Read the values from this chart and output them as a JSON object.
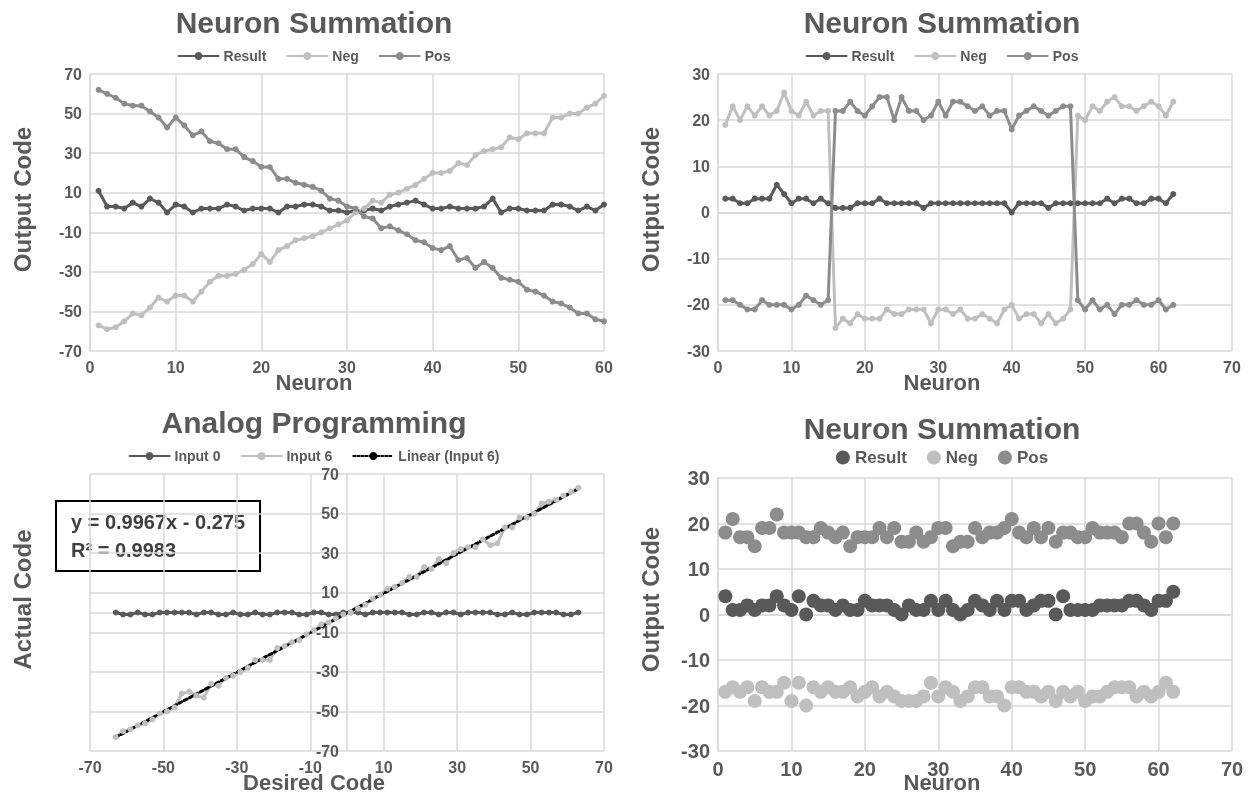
{
  "chart_data": [
    {
      "type": "line",
      "title": "Neuron Summation",
      "xlabel": "Neuron",
      "ylabel": "Output Code",
      "legend": "top",
      "grid": true,
      "marker": "circle",
      "xlim": [
        0,
        60
      ],
      "xticks": [
        0,
        10,
        20,
        30,
        40,
        50,
        60
      ],
      "ylim": [
        -70,
        70
      ],
      "yticks": [
        -70,
        -50,
        -30,
        -10,
        10,
        30,
        50,
        70
      ],
      "x": [
        1,
        2,
        3,
        4,
        5,
        6,
        7,
        8,
        9,
        10,
        11,
        12,
        13,
        14,
        15,
        16,
        17,
        18,
        19,
        20,
        21,
        22,
        23,
        24,
        25,
        26,
        27,
        28,
        29,
        30,
        31,
        32,
        33,
        34,
        35,
        36,
        37,
        38,
        39,
        40,
        41,
        42,
        43,
        44,
        45,
        46,
        47,
        48,
        49,
        50,
        51,
        52,
        53,
        54,
        55,
        56,
        57,
        58,
        59,
        60
      ],
      "series": [
        {
          "name": "Result",
          "color": "#595959",
          "values": [
            11,
            3,
            3,
            2,
            5,
            3,
            7,
            5,
            0,
            4,
            3,
            0,
            2,
            2,
            2,
            4,
            3,
            1,
            2,
            2,
            2,
            0,
            3,
            3,
            4,
            4,
            3,
            1,
            1,
            0,
            1,
            1,
            2,
            1,
            3,
            4,
            5,
            6,
            4,
            2,
            2,
            3,
            2,
            2,
            2,
            3,
            7,
            0,
            2,
            2,
            1,
            1,
            1,
            4,
            4,
            3,
            1,
            3,
            1,
            4
          ]
        },
        {
          "name": "Neg",
          "color": "#bfbfbf",
          "values": [
            -57,
            -59,
            -58,
            -55,
            -51,
            -52,
            -48,
            -43,
            -45,
            -42,
            -42,
            -45,
            -40,
            -35,
            -32,
            -32,
            -31,
            -29,
            -26,
            -21,
            -25,
            -19,
            -17,
            -14,
            -13,
            -12,
            -10,
            -8,
            -6,
            -4,
            0,
            2,
            6,
            5,
            9,
            10,
            12,
            14,
            17,
            20,
            20,
            21,
            25,
            24,
            29,
            31,
            32,
            33,
            38,
            37,
            40,
            40,
            40,
            48,
            48,
            50,
            50,
            53,
            55,
            59
          ]
        },
        {
          "name": "Pos",
          "color": "#8c8c8c",
          "values": [
            62,
            60,
            58,
            55,
            54,
            54,
            51,
            48,
            43,
            48,
            44,
            39,
            41,
            36,
            35,
            32,
            32,
            28,
            26,
            23,
            23,
            17,
            17,
            15,
            14,
            13,
            11,
            7,
            6,
            3,
            2,
            -2,
            -3,
            -8,
            -7,
            -9,
            -11,
            -14,
            -15,
            -18,
            -19,
            -17,
            -24,
            -23,
            -28,
            -25,
            -28,
            -33,
            -34,
            -35,
            -39,
            -40,
            -42,
            -45,
            -46,
            -48,
            -51,
            -51,
            -54,
            -55
          ]
        }
      ]
    },
    {
      "type": "line",
      "title": "Neuron Summation",
      "xlabel": "Neuron",
      "ylabel": "Output Code",
      "legend": "top",
      "grid": true,
      "marker": "circle",
      "xlim": [
        0,
        70
      ],
      "xticks": [
        0,
        10,
        20,
        30,
        40,
        50,
        60,
        70
      ],
      "ylim": [
        -30,
        30
      ],
      "yticks": [
        -30,
        -20,
        -10,
        0,
        10,
        20,
        30
      ],
      "x": [
        1,
        2,
        3,
        4,
        5,
        6,
        7,
        8,
        9,
        10,
        11,
        12,
        13,
        14,
        15,
        16,
        17,
        18,
        19,
        20,
        21,
        22,
        23,
        24,
        25,
        26,
        27,
        28,
        29,
        30,
        31,
        32,
        33,
        34,
        35,
        36,
        37,
        38,
        39,
        40,
        41,
        42,
        43,
        44,
        45,
        46,
        47,
        48,
        49,
        50,
        51,
        52,
        53,
        54,
        55,
        56,
        57,
        58,
        59,
        60,
        61,
        62
      ],
      "series": [
        {
          "name": "Result",
          "color": "#595959",
          "values": [
            3,
            3,
            2,
            2,
            3,
            3,
            3,
            6,
            4,
            2,
            3,
            3,
            2,
            3,
            2,
            1,
            1,
            1,
            2,
            2,
            2,
            3,
            2,
            2,
            2,
            2,
            2,
            1,
            2,
            2,
            2,
            2,
            2,
            2,
            2,
            2,
            2,
            2,
            2,
            0,
            2,
            2,
            2,
            2,
            1,
            2,
            2,
            2,
            2,
            2,
            2,
            2,
            3,
            2,
            3,
            3,
            2,
            2,
            3,
            3,
            2,
            4
          ]
        },
        {
          "name": "Neg",
          "color": "#bfbfbf",
          "values": [
            19,
            23,
            20,
            23,
            21,
            23,
            21,
            22,
            26,
            22,
            21,
            24,
            21,
            22,
            22,
            -25,
            -23,
            -24,
            -22,
            -23,
            -23,
            -23,
            -21,
            -22,
            -22,
            -21,
            -21,
            -21,
            -24,
            -21,
            -21,
            -22,
            -21,
            -23,
            -23,
            -22,
            -23,
            -24,
            -21,
            -20,
            -23,
            -22,
            -22,
            -24,
            -22,
            -24,
            -23,
            -21,
            21,
            20,
            23,
            22,
            24,
            25,
            23,
            23,
            22,
            23,
            24,
            23,
            21,
            24
          ]
        },
        {
          "name": "Pos",
          "color": "#8c8c8c",
          "values": [
            -19,
            -19,
            -20,
            -21,
            -21,
            -19,
            -20,
            -20,
            -20,
            -21,
            -20,
            -18,
            -19,
            -20,
            -19,
            22,
            22,
            24,
            22,
            21,
            23,
            25,
            25,
            20,
            25,
            22,
            22,
            20,
            21,
            24,
            21,
            24,
            24,
            23,
            22,
            23,
            21,
            22,
            22,
            18,
            21,
            22,
            23,
            22,
            21,
            22,
            23,
            23,
            -19,
            -21,
            -19,
            -21,
            -20,
            -22,
            -20,
            -20,
            -19,
            -20,
            -20,
            -19,
            -21,
            -20
          ]
        }
      ]
    },
    {
      "type": "line",
      "title": "Analog Programming",
      "xlabel": "Desired Code",
      "ylabel": "Actual Code",
      "legend": "top",
      "grid": true,
      "marker": "circle",
      "xlim": [
        -70,
        70
      ],
      "xticks": [
        -70,
        -50,
        -30,
        -10,
        10,
        30,
        50,
        70
      ],
      "ylim": [
        -70,
        70
      ],
      "yticks": [
        -70,
        -50,
        -30,
        -10,
        10,
        30,
        50,
        70
      ],
      "annotations": [
        "y = 0.9967x - 0.275",
        "R² = 0.9983"
      ],
      "x": [
        -63,
        -61,
        -59,
        -57,
        -55,
        -53,
        -51,
        -49,
        -47,
        -45,
        -43,
        -41,
        -39,
        -37,
        -35,
        -33,
        -31,
        -29,
        -27,
        -25,
        -23,
        -21,
        -19,
        -17,
        -15,
        -13,
        -11,
        -9,
        -7,
        -5,
        -3,
        -1,
        1,
        3,
        5,
        7,
        9,
        11,
        13,
        15,
        17,
        19,
        21,
        23,
        25,
        27,
        29,
        31,
        33,
        35,
        37,
        39,
        41,
        43,
        45,
        47,
        49,
        51,
        53,
        55,
        57,
        59,
        61,
        63
      ],
      "series": [
        {
          "name": "Input 0",
          "color": "#595959",
          "values": [
            0,
            -1,
            -1,
            0,
            -1,
            -1,
            0,
            0,
            0,
            0,
            0,
            -1,
            0,
            0,
            -1,
            -1,
            0,
            -1,
            -1,
            0,
            -1,
            -1,
            0,
            0,
            0,
            -1,
            -1,
            0,
            0,
            -1,
            -1,
            0,
            0,
            0,
            -1,
            0,
            0,
            0,
            0,
            0,
            -1,
            -1,
            0,
            0,
            -1,
            0,
            0,
            -1,
            0,
            0,
            0,
            0,
            -1,
            -1,
            0,
            -1,
            -1,
            0,
            0,
            0,
            0,
            -1,
            -1,
            0
          ]
        },
        {
          "name": "Input 6",
          "color": "#bfbfbf",
          "values": [
            -63,
            -60,
            -59,
            -57,
            -56,
            -54,
            -51,
            -50,
            -48,
            -41,
            -40,
            -42,
            -43,
            -36,
            -37,
            -33,
            -32,
            -30,
            -28,
            -24,
            -24,
            -24,
            -18,
            -17,
            -15,
            -14,
            -11,
            -9,
            -6,
            -5,
            -3,
            -1,
            0,
            2,
            4,
            7,
            9,
            12,
            13,
            15,
            18,
            18,
            23,
            22,
            27,
            25,
            30,
            32,
            33,
            33,
            37,
            34,
            35,
            43,
            43,
            48,
            48,
            50,
            55,
            56,
            57,
            59,
            61,
            63
          ]
        },
        {
          "name": "Linear (Input 6)",
          "type": "line",
          "color": "#000000",
          "line_style": "dotted",
          "marker": "none",
          "x": [
            -63,
            63
          ],
          "values": [
            -63.1,
            62.5
          ]
        }
      ]
    },
    {
      "type": "scatter",
      "title": "Neuron Summation",
      "xlabel": "Neuron",
      "ylabel": "Output Code",
      "legend": "top",
      "grid": true,
      "marker": "circle",
      "xlim": [
        0,
        70
      ],
      "xticks": [
        0,
        10,
        20,
        30,
        40,
        50,
        60,
        70
      ],
      "ylim": [
        -30,
        30
      ],
      "yticks": [
        -30,
        -20,
        -10,
        0,
        10,
        20,
        30
      ],
      "x": [
        1,
        2,
        3,
        4,
        5,
        6,
        7,
        8,
        9,
        10,
        11,
        12,
        13,
        14,
        15,
        16,
        17,
        18,
        19,
        20,
        21,
        22,
        23,
        24,
        25,
        26,
        27,
        28,
        29,
        30,
        31,
        32,
        33,
        34,
        35,
        36,
        37,
        38,
        39,
        40,
        41,
        42,
        43,
        44,
        45,
        46,
        47,
        48,
        49,
        50,
        51,
        52,
        53,
        54,
        55,
        56,
        57,
        58,
        59,
        60,
        61,
        62
      ],
      "series": [
        {
          "name": "Result",
          "color": "#595959",
          "values": [
            4,
            1,
            1,
            2,
            1,
            2,
            2,
            4,
            2,
            1,
            4,
            0,
            3,
            2,
            2,
            1,
            2,
            1,
            1,
            3,
            2,
            2,
            2,
            1,
            0,
            2,
            1,
            1,
            3,
            1,
            3,
            1,
            0,
            1,
            3,
            2,
            1,
            3,
            1,
            3,
            3,
            1,
            2,
            3,
            3,
            0,
            4,
            1,
            1,
            1,
            1,
            2,
            2,
            2,
            2,
            3,
            3,
            2,
            1,
            3,
            3,
            5
          ]
        },
        {
          "name": "Neg",
          "color": "#bfbfbf",
          "values": [
            -17,
            -16,
            -17,
            -16,
            -19,
            -16,
            -17,
            -17,
            -15,
            -19,
            -15,
            -20,
            -16,
            -17,
            -16,
            -17,
            -17,
            -16,
            -18,
            -17,
            -16,
            -18,
            -17,
            -18,
            -19,
            -19,
            -19,
            -18,
            -15,
            -18,
            -16,
            -17,
            -19,
            -18,
            -16,
            -16,
            -18,
            -18,
            -20,
            -16,
            -16,
            -17,
            -17,
            -18,
            -17,
            -19,
            -17,
            -18,
            -17,
            -19,
            -18,
            -18,
            -17,
            -16,
            -16,
            -16,
            -18,
            -17,
            -18,
            -17,
            -15,
            -17
          ]
        },
        {
          "name": "Pos",
          "color": "#8c8c8c",
          "values": [
            18,
            21,
            17,
            17,
            15,
            19,
            19,
            22,
            18,
            18,
            18,
            17,
            17,
            19,
            18,
            17,
            18,
            15,
            17,
            17,
            17,
            19,
            17,
            19,
            16,
            16,
            18,
            16,
            17,
            19,
            19,
            15,
            16,
            16,
            19,
            17,
            18,
            18,
            19,
            21,
            18,
            17,
            19,
            17,
            19,
            16,
            18,
            18,
            17,
            17,
            19,
            18,
            18,
            18,
            17,
            20,
            20,
            18,
            16,
            20,
            17,
            20
          ]
        }
      ]
    }
  ]
}
